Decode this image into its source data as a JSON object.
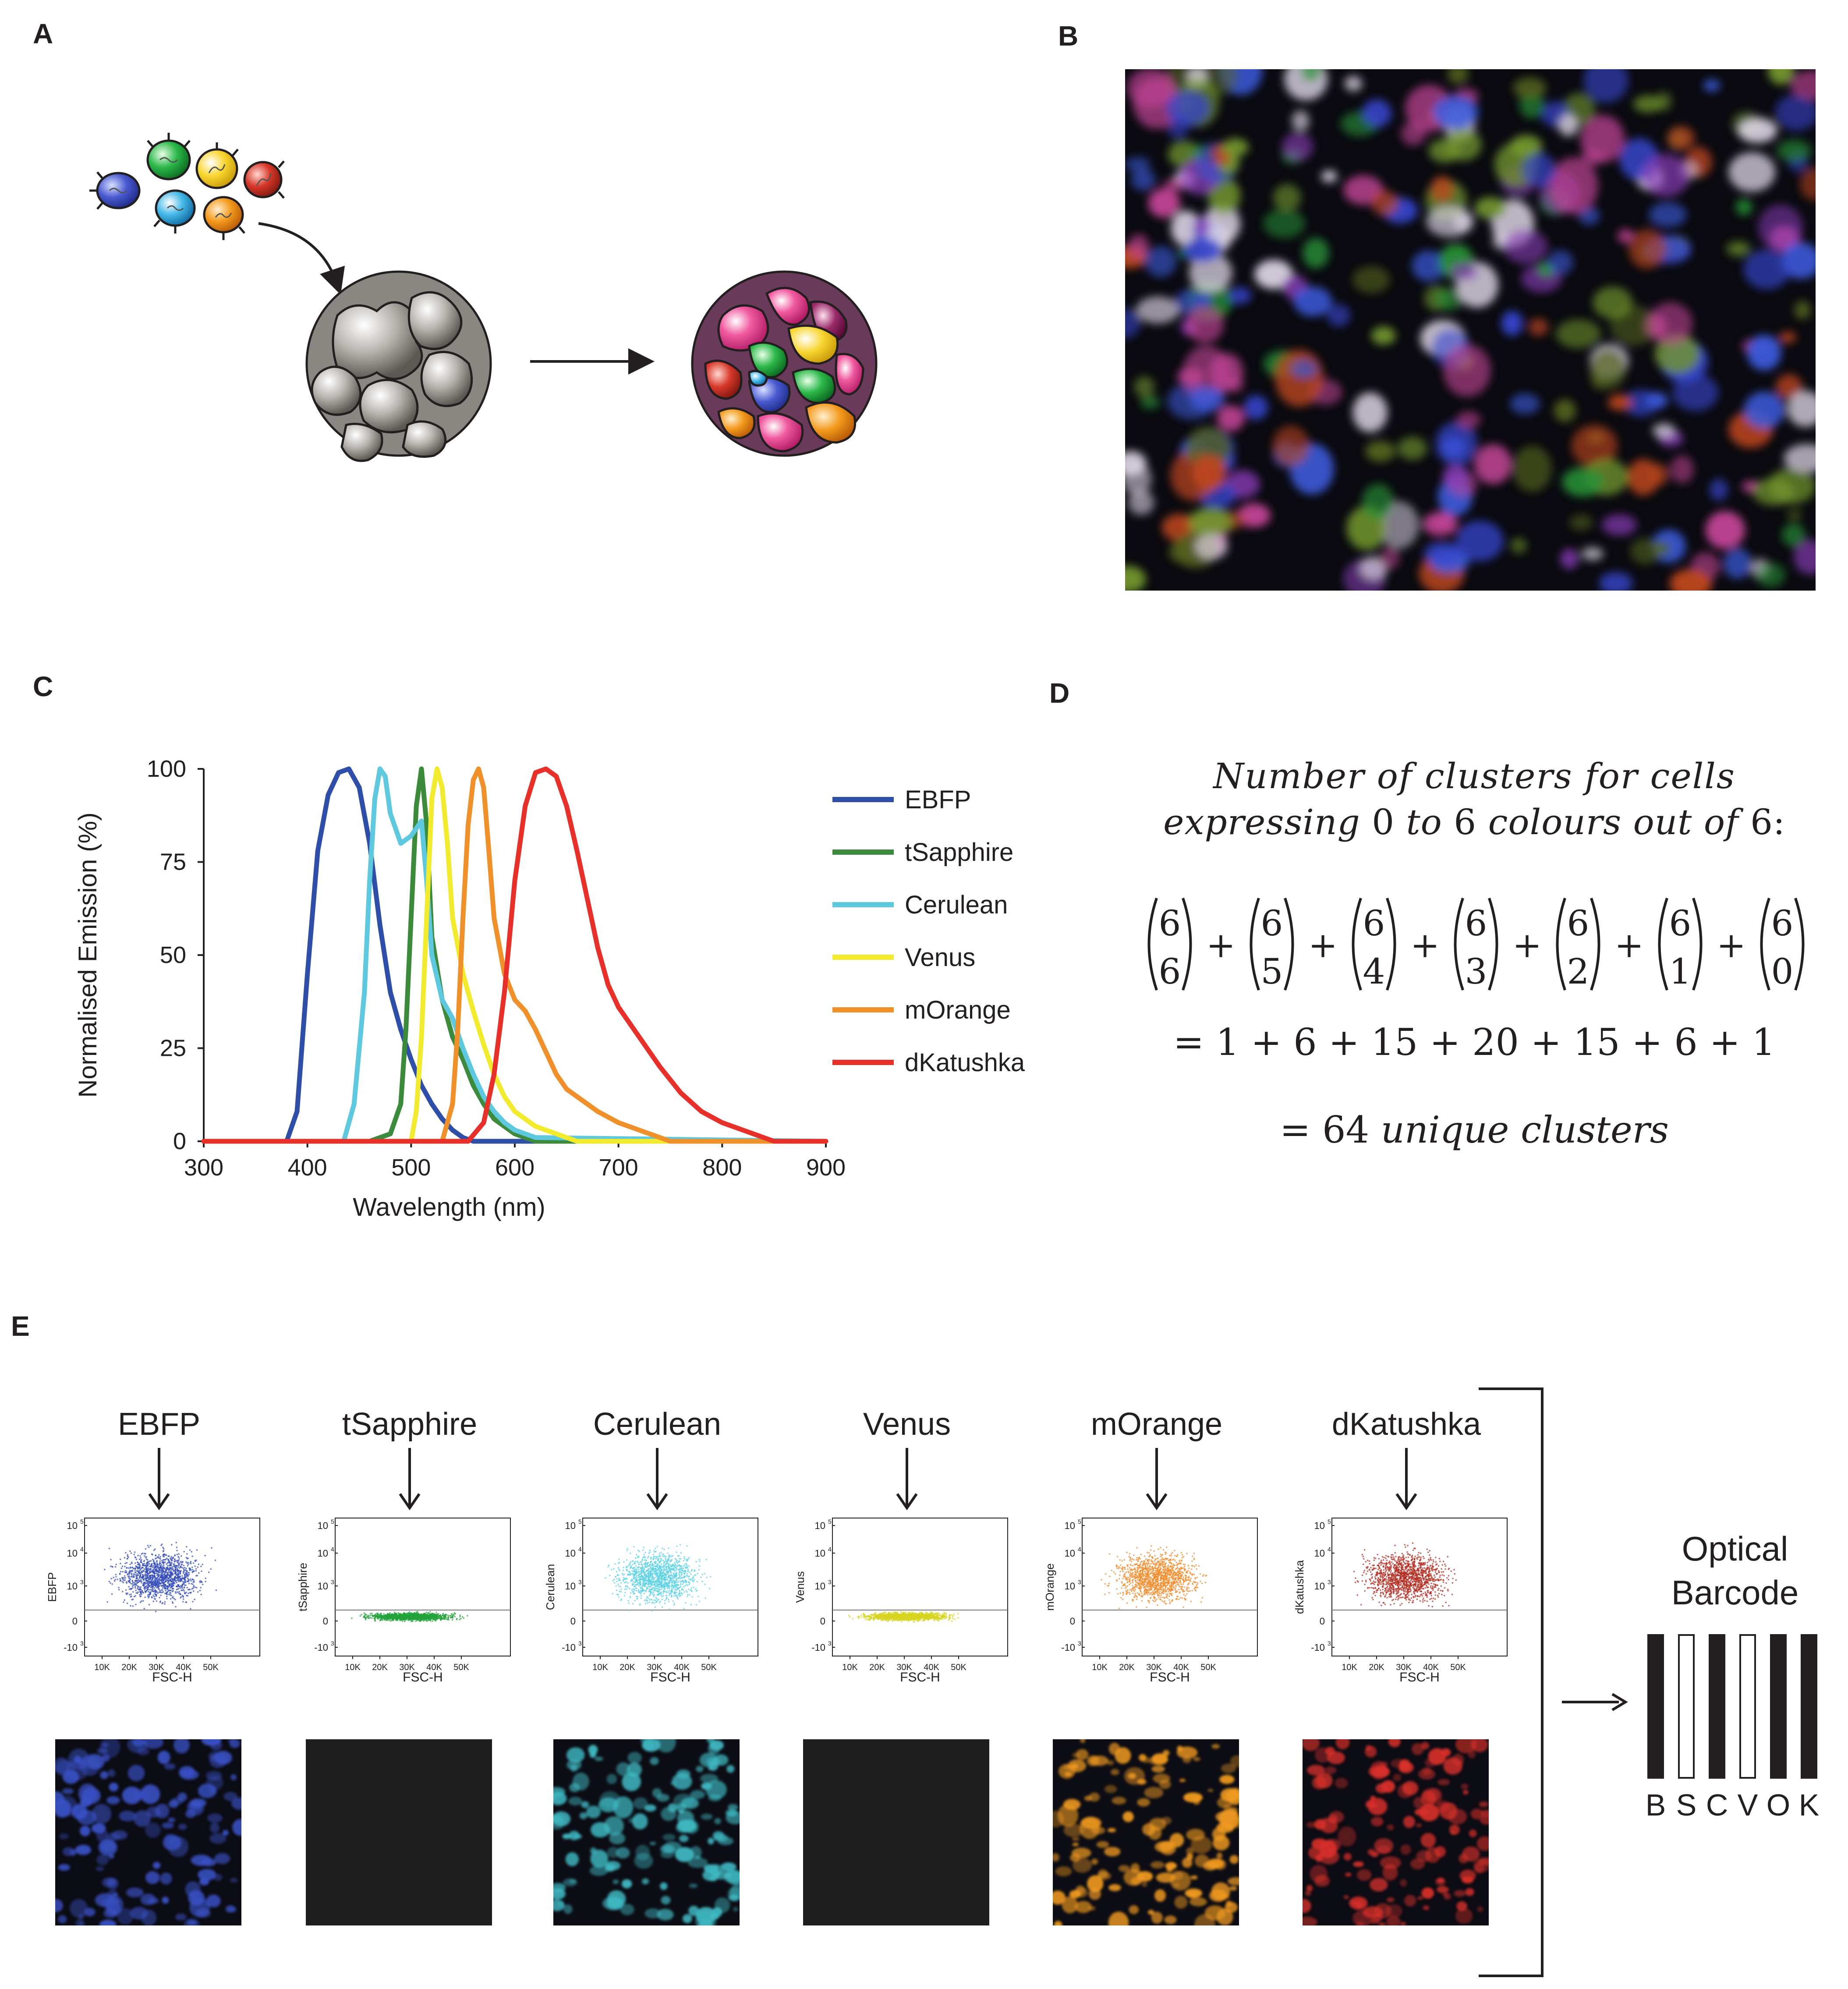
{
  "panels": {
    "a": "A",
    "b": "B",
    "c": "C",
    "d": "D",
    "e": "E"
  },
  "colors": {
    "ebfp": "#2f4ea8",
    "tsapphire": "#3c8a3c",
    "cerulean": "#5ec8de",
    "venus": "#f2ea2c",
    "morange": "#f0902a",
    "dkatushka": "#e8302a"
  },
  "panel_c": {
    "chart_data": {
      "type": "line",
      "title": "",
      "xlabel": "Wavelength (nm)",
      "ylabel": "Normalised Emission (%)",
      "xlim": [
        300,
        900
      ],
      "ylim": [
        0,
        100
      ],
      "xticks": [
        "300",
        "400",
        "500",
        "600",
        "700",
        "800",
        "900"
      ],
      "yticks": [
        "0",
        "25",
        "50",
        "75",
        "100"
      ],
      "series": [
        {
          "name": "EBFP",
          "color": "#2f4ea8",
          "x": [
            300,
            380,
            390,
            400,
            410,
            420,
            430,
            440,
            450,
            460,
            470,
            480,
            490,
            500,
            510,
            520,
            530,
            540,
            550,
            560,
            570,
            900
          ],
          "y": [
            0,
            0,
            8,
            45,
            78,
            93,
            99,
            100,
            95,
            80,
            58,
            40,
            30,
            22,
            15,
            10,
            6,
            3,
            1,
            0,
            0,
            0
          ]
        },
        {
          "name": "tSapphire",
          "color": "#3c8a3c",
          "x": [
            300,
            460,
            480,
            490,
            495,
            500,
            505,
            510,
            515,
            520,
            530,
            540,
            550,
            560,
            570,
            580,
            590,
            600,
            620,
            900
          ],
          "y": [
            0,
            0,
            2,
            10,
            30,
            60,
            90,
            100,
            85,
            55,
            38,
            28,
            22,
            15,
            10,
            6,
            4,
            2,
            0,
            0
          ]
        },
        {
          "name": "Cerulean",
          "color": "#5ec8de",
          "x": [
            300,
            435,
            445,
            455,
            460,
            465,
            470,
            475,
            480,
            490,
            500,
            510,
            515,
            520,
            530,
            540,
            550,
            560,
            570,
            580,
            590,
            600,
            620,
            900
          ],
          "y": [
            0,
            0,
            10,
            40,
            70,
            92,
            100,
            98,
            88,
            80,
            82,
            86,
            70,
            50,
            38,
            33,
            25,
            18,
            12,
            8,
            5,
            3,
            1,
            0
          ]
        },
        {
          "name": "Venus",
          "color": "#f2ea2c",
          "x": [
            300,
            500,
            505,
            510,
            515,
            520,
            525,
            530,
            535,
            540,
            550,
            560,
            570,
            580,
            590,
            600,
            620,
            640,
            660,
            900
          ],
          "y": [
            0,
            0,
            8,
            28,
            60,
            92,
            100,
            95,
            80,
            60,
            45,
            35,
            26,
            18,
            12,
            8,
            4,
            2,
            0,
            0
          ]
        },
        {
          "name": "mOrange",
          "color": "#f0902a",
          "x": [
            300,
            530,
            540,
            545,
            550,
            555,
            560,
            565,
            570,
            575,
            580,
            590,
            600,
            610,
            620,
            630,
            640,
            650,
            660,
            680,
            700,
            720,
            740,
            750,
            900
          ],
          "y": [
            0,
            0,
            10,
            30,
            60,
            85,
            97,
            100,
            95,
            78,
            60,
            45,
            38,
            35,
            30,
            24,
            18,
            14,
            12,
            8,
            5,
            3,
            1,
            0,
            0
          ]
        },
        {
          "name": "dKatushka",
          "color": "#e8302a",
          "x": [
            300,
            555,
            570,
            580,
            590,
            600,
            610,
            620,
            630,
            640,
            650,
            660,
            670,
            680,
            690,
            700,
            720,
            740,
            760,
            780,
            800,
            820,
            840,
            850,
            900
          ],
          "y": [
            0,
            0,
            5,
            18,
            40,
            70,
            90,
            99,
            100,
            98,
            90,
            78,
            65,
            52,
            42,
            36,
            28,
            20,
            13,
            8,
            5,
            3,
            1,
            0,
            0
          ]
        }
      ],
      "legend": [
        "EBFP",
        "tSapphire",
        "Cerulean",
        "Venus",
        "mOrange",
        "dKatushka"
      ],
      "legend_position": "right"
    }
  },
  "panel_d": {
    "title_line1": "Number of clusters for cells",
    "title_line2_a": "expressing",
    "title_line2_b": "0",
    "title_line2_c": "to",
    "title_line2_d": "6",
    "title_line2_e": "colours out of",
    "title_line2_f": "6",
    "title_line2_g": ":",
    "binomials": [
      {
        "n": "6",
        "k": "6"
      },
      {
        "n": "6",
        "k": "5"
      },
      {
        "n": "6",
        "k": "4"
      },
      {
        "n": "6",
        "k": "3"
      },
      {
        "n": "6",
        "k": "2"
      },
      {
        "n": "6",
        "k": "1"
      },
      {
        "n": "6",
        "k": "0"
      }
    ],
    "plus": "+",
    "sum_line": "= 1 + 6 + 15 + 20 + 15 + 6 + 1",
    "result_eq": "= 64",
    "result_text": "unique clusters"
  },
  "panel_e": {
    "channels": [
      {
        "name": "EBFP",
        "ylabel": "EBFP",
        "color": "#3048b8",
        "pop": "high",
        "image": "bright",
        "micro_color": "#3a52c8"
      },
      {
        "name": "tSapphire",
        "ylabel": "tSapphire",
        "color": "#23a33a",
        "pop": "low",
        "image": "dark",
        "micro_color": "#1e1e1e"
      },
      {
        "name": "Cerulean",
        "ylabel": "Cerulean",
        "color": "#5cd2e2",
        "pop": "high",
        "image": "bright",
        "micro_color": "#3fb8c2"
      },
      {
        "name": "Venus",
        "ylabel": "Venus",
        "color": "#d6d41e",
        "pop": "low",
        "image": "dark",
        "micro_color": "#1e1e1e"
      },
      {
        "name": "mOrange",
        "ylabel": "mOrange",
        "color": "#f08a2a",
        "pop": "high",
        "image": "bright",
        "micro_color": "#f09a20"
      },
      {
        "name": "dKatushka",
        "ylabel": "dKatushka",
        "color": "#b02a1e",
        "pop": "high",
        "image": "bright",
        "micro_color": "#d8302a"
      }
    ],
    "xlabel": "FSC-H",
    "xticks": [
      "10K",
      "20K",
      "30K",
      "40K",
      "50K"
    ],
    "yticks": [
      "10^5",
      "10^4",
      "10^3",
      "0",
      "-10^3"
    ],
    "barcode_title_1": "Optical",
    "barcode_title_2": "Barcode",
    "barcode": [
      {
        "letter": "B",
        "filled": true
      },
      {
        "letter": "S",
        "filled": false
      },
      {
        "letter": "C",
        "filled": true
      },
      {
        "letter": "V",
        "filled": false
      },
      {
        "letter": "O",
        "filled": true
      },
      {
        "letter": "K",
        "filled": true
      }
    ]
  }
}
